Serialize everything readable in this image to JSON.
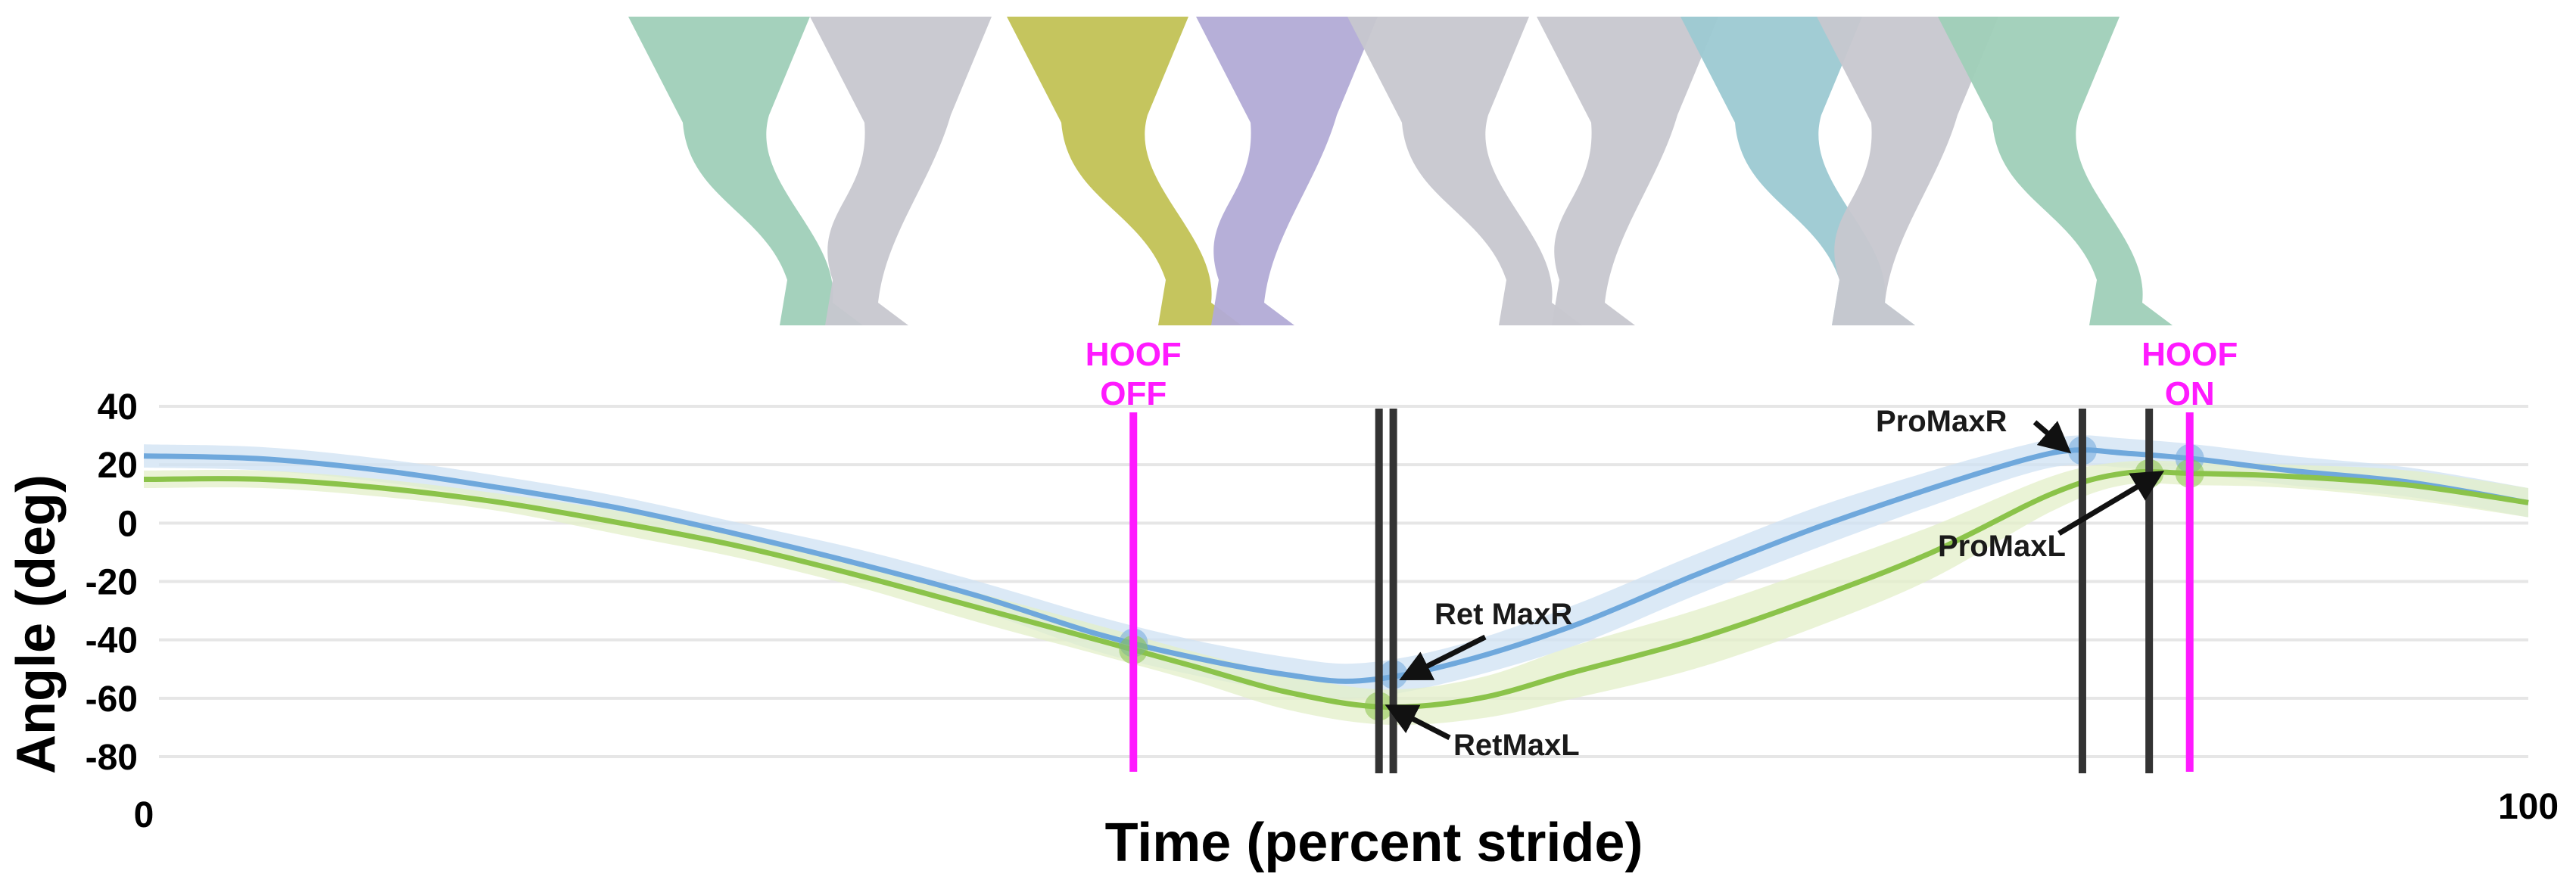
{
  "chart_data": {
    "type": "line",
    "xlabel": "Time (percent stride)",
    "ylabel": "Angle (deg)",
    "xlim": [
      0,
      100
    ],
    "ylim": [
      -80,
      40
    ],
    "x_ticks": [
      "0",
      "100"
    ],
    "y_ticks": [
      40,
      20,
      0,
      -20,
      -40,
      -60,
      -80
    ],
    "grid": true,
    "legend": "none",
    "series": [
      {
        "color": "#6fa8dc",
        "band_color": "#cfe2f3",
        "x": [
          0,
          5,
          10,
          15,
          20,
          25,
          30,
          35,
          40,
          44,
          48,
          51,
          55,
          60,
          65,
          70,
          75,
          79,
          81,
          83,
          86,
          90,
          95,
          100
        ],
        "y": [
          23,
          22,
          18,
          12,
          5,
          -4,
          -14,
          -25,
          -38,
          -46,
          -52,
          -54,
          -48,
          -35,
          -18,
          -2,
          12,
          22,
          25,
          24,
          22,
          18,
          14,
          7
        ],
        "band": [
          4,
          4,
          4,
          4,
          4,
          4,
          5,
          5,
          6,
          6,
          6,
          6,
          6,
          7,
          7,
          7,
          6,
          5,
          5,
          5,
          5,
          5,
          5,
          5
        ]
      },
      {
        "color": "#8bc34a",
        "band_color": "#e3efc8",
        "x": [
          0,
          5,
          10,
          15,
          20,
          25,
          30,
          35,
          40,
          44,
          48,
          52,
          56,
          60,
          65,
          70,
          75,
          80,
          83,
          86,
          90,
          95,
          100
        ],
        "y": [
          15,
          15,
          12,
          7,
          0,
          -8,
          -18,
          -29,
          -40,
          -49,
          -58,
          -63,
          -60,
          -51,
          -40,
          -26,
          -10,
          10,
          17,
          17,
          16,
          13,
          7
        ],
        "band": [
          3,
          3,
          3,
          3,
          4,
          4,
          4,
          5,
          5,
          5,
          6,
          6,
          7,
          9,
          10,
          10,
          9,
          6,
          4,
          4,
          4,
          5,
          5
        ]
      }
    ],
    "events": [
      {
        "label_line1": "HOOF",
        "label_line2": "OFF",
        "x": 41.5,
        "color": "#ff1aff"
      },
      {
        "label_line1": "HOOF",
        "label_line2": "ON",
        "x": 85.8,
        "color": "#ff1aff"
      }
    ],
    "markers": [
      {
        "x": 51.8,
        "color": "#333333"
      },
      {
        "x": 52.4,
        "color": "#333333"
      },
      {
        "x": 81.3,
        "color": "#333333"
      },
      {
        "x": 84.1,
        "color": "#333333"
      }
    ],
    "annotations": [
      {
        "text": "Ret MaxR",
        "x": 52.4,
        "y": -53
      },
      {
        "text": "RetMaxL",
        "x": 51.8,
        "y": -63
      },
      {
        "text": "ProMaxR",
        "x": 81.3,
        "y": 25
      },
      {
        "text": "ProMaxL",
        "x": 84.1,
        "y": 17
      }
    ],
    "stride_silhouettes": [
      {
        "color": "#9fcfb8"
      },
      {
        "color": "#c7c7cf"
      },
      {
        "color": "#c2c255"
      },
      {
        "color": "#b2abd6"
      },
      {
        "color": "#c7c7cf"
      },
      {
        "color": "#c7c7cf"
      },
      {
        "color": "#9cc9d2"
      },
      {
        "color": "#c7c7cf"
      },
      {
        "color": "#9fcfb8"
      }
    ]
  }
}
